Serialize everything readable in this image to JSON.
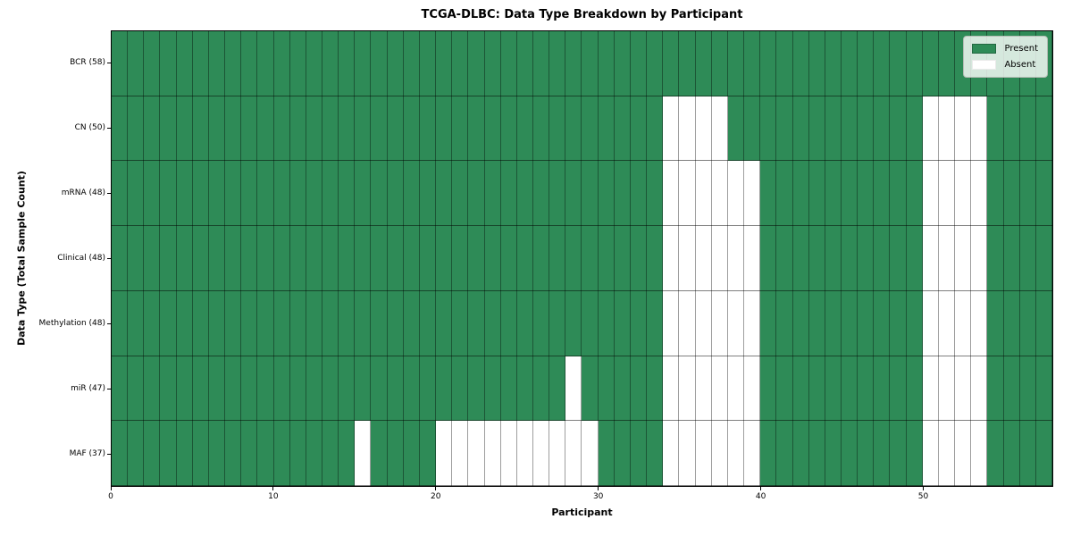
{
  "colors": {
    "present": "#2e8b57",
    "absent": "#ffffff",
    "frame": "#000000",
    "legend_border": "#b5bcb5"
  },
  "legend": [
    {
      "label": "Present",
      "color": "#2e8b57"
    },
    {
      "label": "Absent",
      "color": "#ffffff"
    }
  ],
  "chart_data": {
    "type": "heatmap",
    "title": "TCGA-DLBC: Data Type Breakdown by Participant",
    "xlabel": "Participant",
    "ylabel": "Data Type (Total Sample Count)",
    "x_range": [
      0,
      58
    ],
    "x_ticks": [
      0,
      10,
      20,
      30,
      40,
      50
    ],
    "n_participants": 58,
    "cell_values": {
      "present": 1,
      "absent": 0
    },
    "legend_entries": [
      "Present",
      "Absent"
    ],
    "grid": true,
    "legend_position": "upper right",
    "rows": [
      {
        "label": "BCR (58)",
        "data_type": "BCR",
        "total_samples": 58,
        "absent_participants": []
      },
      {
        "label": "CN (50)",
        "data_type": "CN",
        "total_samples": 50,
        "absent_participants": [
          34,
          35,
          36,
          37,
          50,
          51,
          52,
          53
        ]
      },
      {
        "label": "mRNA (48)",
        "data_type": "mRNA",
        "total_samples": 48,
        "absent_participants": [
          34,
          35,
          36,
          37,
          38,
          39,
          50,
          51,
          52,
          53
        ]
      },
      {
        "label": "Clinical (48)",
        "data_type": "Clinical",
        "total_samples": 48,
        "absent_participants": [
          34,
          35,
          36,
          37,
          38,
          39,
          50,
          51,
          52,
          53
        ]
      },
      {
        "label": "Methylation (48)",
        "data_type": "Methylation",
        "total_samples": 48,
        "absent_participants": [
          34,
          35,
          36,
          37,
          38,
          39,
          50,
          51,
          52,
          53
        ]
      },
      {
        "label": "miR (47)",
        "data_type": "miR",
        "total_samples": 47,
        "absent_participants": [
          28,
          34,
          35,
          36,
          37,
          38,
          39,
          50,
          51,
          52,
          53
        ]
      },
      {
        "label": "MAF (37)",
        "data_type": "MAF",
        "total_samples": 37,
        "absent_participants": [
          15,
          20,
          21,
          22,
          23,
          24,
          25,
          26,
          27,
          28,
          29,
          34,
          35,
          36,
          37,
          38,
          39,
          50,
          51,
          52,
          53
        ]
      }
    ]
  }
}
